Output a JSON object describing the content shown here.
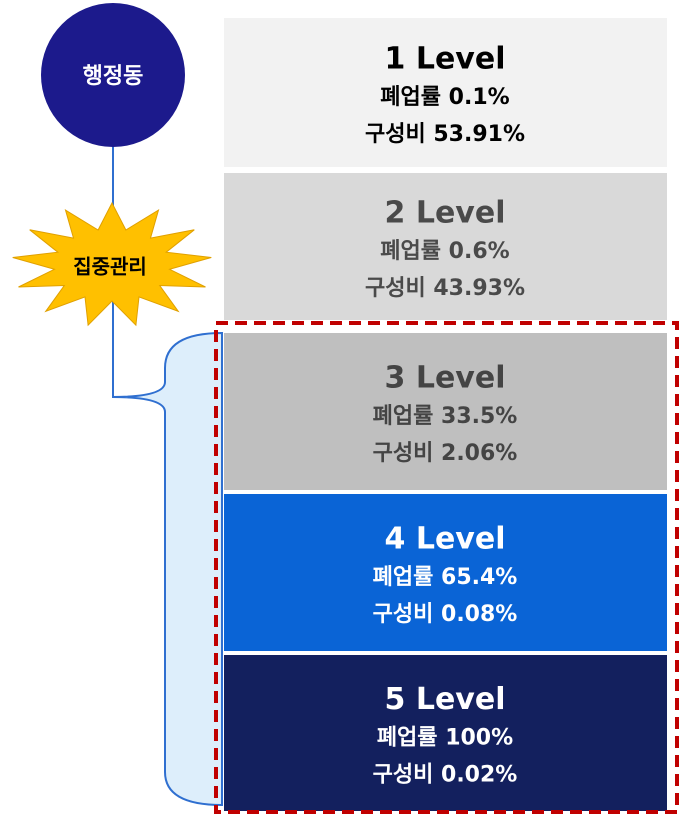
{
  "root": {
    "label": "행정동"
  },
  "badge": {
    "label": "집중관리"
  },
  "levels": [
    {
      "title": "1 Level",
      "closure_rate": "폐업률 0.1%",
      "composition": "구성비 53.91%"
    },
    {
      "title": "2 Level",
      "closure_rate": "폐업률 0.6%",
      "composition": "구성비 43.93%"
    },
    {
      "title": "3 Level",
      "closure_rate": "폐업률 33.5%",
      "composition": "구성비 2.06%"
    },
    {
      "title": "4 Level",
      "closure_rate": "폐업률 65.4%",
      "composition": "구성비 0.08%"
    },
    {
      "title": "5 Level",
      "closure_rate": "폐업률 100%",
      "composition": "구성비 0.02%"
    }
  ]
}
